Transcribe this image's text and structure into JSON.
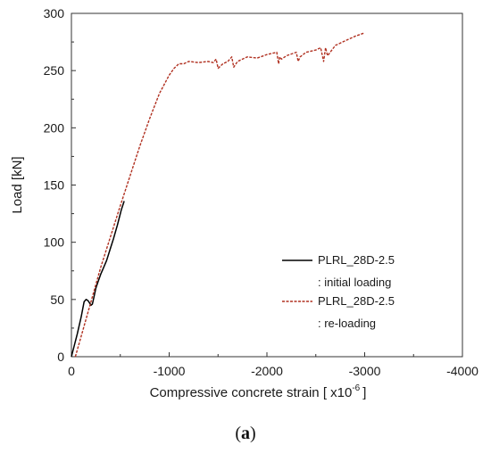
{
  "chart_data": {
    "type": "line",
    "xlabel": "Compressive concrete strain [ x10",
    "xlabel_superscript": "-6",
    "xlabel_suffix": "]",
    "ylabel": "Load [kN]",
    "xlim": [
      0,
      -4000
    ],
    "ylim": [
      0,
      300
    ],
    "x_ticks": [
      "0",
      "-1000",
      "-2000",
      "-3000",
      "-4000"
    ],
    "y_ticks": [
      "0",
      "50",
      "100",
      "150",
      "200",
      "250",
      "300"
    ],
    "grid": false,
    "legend_position": "bottom-right",
    "series": [
      {
        "name": "PLRL_28D-2.5",
        "note": ": initial loading",
        "color": "#000000",
        "style": "solid",
        "x": [
          0,
          -60,
          -100,
          -130,
          -150,
          -170,
          -185,
          -200,
          -215,
          -230,
          -250,
          -270,
          -300,
          -330,
          -360,
          -400,
          -430,
          -470,
          -510,
          -540
        ],
        "y": [
          0,
          20,
          35,
          48,
          50,
          49,
          47,
          45,
          46,
          52,
          60,
          65,
          72,
          78,
          84,
          95,
          103,
          115,
          128,
          136
        ]
      },
      {
        "name": "PLRL_28D-2.5",
        "note": ": re-loading",
        "color": "#b03020",
        "style": "dashed",
        "x": [
          -40,
          -100,
          -200,
          -300,
          -400,
          -500,
          -600,
          -700,
          -800,
          -900,
          -1000,
          -1050,
          -1100,
          -1150,
          -1200,
          -1300,
          -1400,
          -1450,
          -1480,
          -1500,
          -1550,
          -1600,
          -1640,
          -1660,
          -1700,
          -1800,
          -1900,
          -2000,
          -2100,
          -2120,
          -2130,
          -2150,
          -2200,
          -2300,
          -2320,
          -2340,
          -2400,
          -2500,
          -2550,
          -2580,
          -2600,
          -2620,
          -2700,
          -2800,
          -2900,
          -3000
        ],
        "y": [
          0,
          18,
          48,
          78,
          105,
          132,
          158,
          184,
          208,
          230,
          246,
          252,
          256,
          256,
          258,
          257,
          258,
          257,
          260,
          252,
          256,
          258,
          262,
          253,
          258,
          262,
          261,
          264,
          266,
          256,
          262,
          260,
          263,
          266,
          258,
          262,
          266,
          268,
          270,
          258,
          270,
          263,
          272,
          276,
          280,
          283
        ]
      }
    ]
  },
  "caption": "(a)"
}
